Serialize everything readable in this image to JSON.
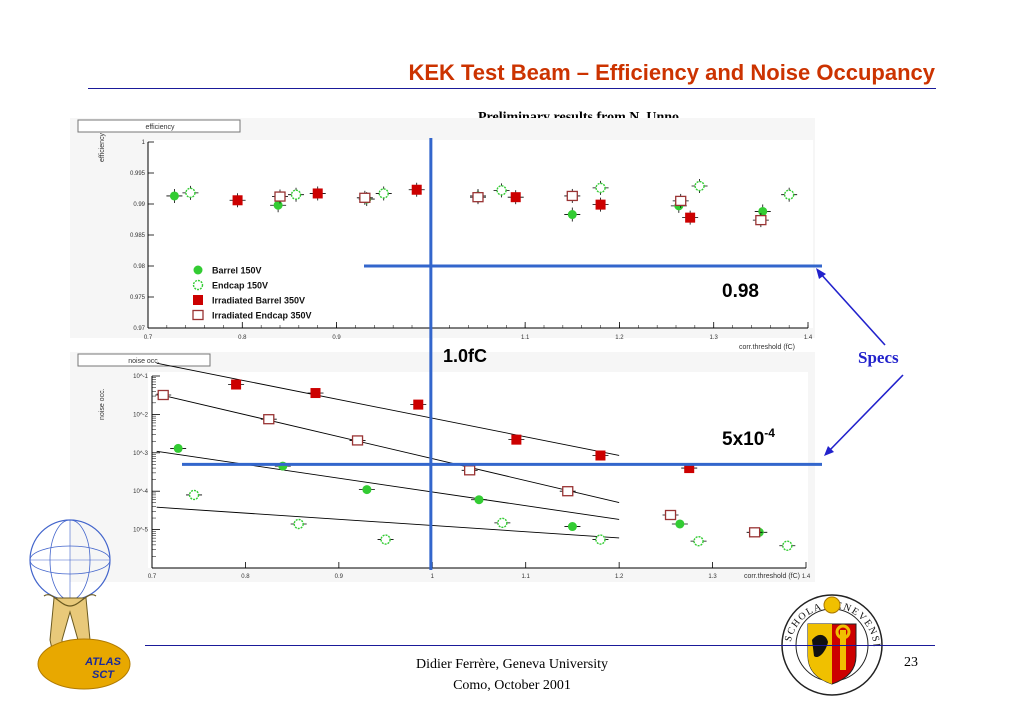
{
  "slide": {
    "title": "KEK Test Beam – Efficiency and Noise Occupancy",
    "subtitle": "Preliminary results from N. Unno",
    "footer_line1": "Didier Ferrère, Geneva University",
    "footer_line2": "Como, October 2001",
    "page_number": "23",
    "specs_label": "Specs",
    "threshold_annotation": "1.0fC",
    "efficiency_spec_annotation": "0.98",
    "noise_spec_annotation_base": "5x10",
    "noise_spec_annotation_exp": "-4",
    "atlas_logo_text": [
      "ATLAS",
      "SCT"
    ],
    "geneva_seal_text": "SCHOLA GENEVENSIS",
    "colors": {
      "title": "#cc3300",
      "rule": "#1a1a99",
      "spec_lines": "#3366cc",
      "specs_text": "#2222cc",
      "barrel": "#33cc33",
      "endcap": "#33cc33",
      "irradiated_barrel": "#cc0000",
      "irradiated_endcap": "#993333"
    }
  },
  "chart_data": [
    {
      "type": "scatter",
      "title": "efficiency",
      "ylabel": "efficiency",
      "xlabel": "corr.threshold (fC)",
      "xlim": [
        0.7,
        1.4
      ],
      "ylim": [
        0.97,
        1.0
      ],
      "x_ticks": [
        "0.7",
        "0.8",
        "0.9",
        "1",
        "1.1",
        "1.2",
        "1.3",
        "1.4"
      ],
      "y_ticks": [
        "0.97",
        "0.975",
        "0.98",
        "0.985",
        "0.99",
        "0.995",
        "1"
      ],
      "legend": [
        "Barrel 150V",
        "Endcap  150V",
        "Irradiated Barrel  350V",
        "Irradiated Endcap 350V"
      ],
      "legend_position": "bottom-left",
      "series": [
        {
          "name": "Barrel 150V",
          "marker": "filled-circle",
          "x": [
            0.728,
            0.838,
            0.932,
            1.05,
            1.15,
            1.263,
            1.352
          ],
          "y": [
            0.9913,
            0.9898,
            0.9908,
            0.9913,
            0.9883,
            0.9897,
            0.9888
          ]
        },
        {
          "name": "Endcap  150V",
          "marker": "open-circle",
          "x": [
            0.745,
            0.857,
            0.95,
            1.075,
            1.18,
            1.285,
            1.38
          ],
          "y": [
            0.9918,
            0.9915,
            0.9917,
            0.9922,
            0.9926,
            0.9929,
            0.9915
          ]
        },
        {
          "name": "Irradiated Barrel  350V",
          "marker": "filled-square",
          "x": [
            0.795,
            0.88,
            0.985,
            1.09,
            1.18,
            1.275
          ],
          "y": [
            0.9906,
            0.9917,
            0.9923,
            0.9911,
            0.9899,
            0.9878
          ]
        },
        {
          "name": "Irradiated Endcap 350V",
          "marker": "open-square",
          "x": [
            0.84,
            0.93,
            1.05,
            1.15,
            1.265,
            1.35
          ],
          "y": [
            0.9912,
            0.991,
            0.9911,
            0.9913,
            0.9905,
            0.9874
          ]
        }
      ],
      "reference_lines": {
        "y": 0.98,
        "x": 1.0
      }
    },
    {
      "type": "scatter",
      "title": "noise occ.",
      "ylabel": "noise occ.",
      "xlabel": "corr.threshold (fC)",
      "xlim": [
        0.7,
        1.4
      ],
      "y_scale": "log",
      "ylim": [
        1e-06,
        0.1
      ],
      "x_ticks": [
        "0.7",
        "0.8",
        "0.9",
        "1",
        "1.1",
        "1.2",
        "1.3",
        "1.4"
      ],
      "y_ticks": [
        "10^-5",
        "10^-4",
        "10^-3",
        "10^-2",
        "10^-1"
      ],
      "series": [
        {
          "name": "Barrel 150V",
          "marker": "filled-circle",
          "x": [
            0.728,
            0.84,
            0.93,
            1.05,
            1.15,
            1.265,
            1.35
          ],
          "y": [
            0.0013,
            0.00045,
            0.00011,
            6e-05,
            1.2e-05,
            1.4e-05,
            8.5e-06
          ]
        },
        {
          "name": "Endcap  150V",
          "marker": "open-circle",
          "x": [
            0.745,
            0.857,
            0.95,
            1.075,
            1.18,
            1.285,
            1.38
          ],
          "y": [
            8e-05,
            1.4e-05,
            5.5e-06,
            1.5e-05,
            5.5e-06,
            5e-06,
            3.8e-06
          ]
        },
        {
          "name": "Irradiated Barrel  350V",
          "marker": "filled-square",
          "x": [
            0.79,
            0.875,
            0.985,
            1.09,
            1.18,
            1.275
          ],
          "y": [
            0.06,
            0.036,
            0.018,
            0.0022,
            0.00085,
            0.0004
          ]
        },
        {
          "name": "Irradiated Endcap 350V",
          "marker": "open-square",
          "x": [
            0.712,
            0.825,
            0.92,
            1.04,
            1.145,
            1.255,
            1.345
          ],
          "y": [
            0.032,
            0.0075,
            0.0021,
            0.00035,
            0.0001,
            2.4e-05,
            8.5e-06
          ]
        }
      ],
      "reference_lines": {
        "y": 0.0005,
        "x": 1.0
      }
    }
  ]
}
